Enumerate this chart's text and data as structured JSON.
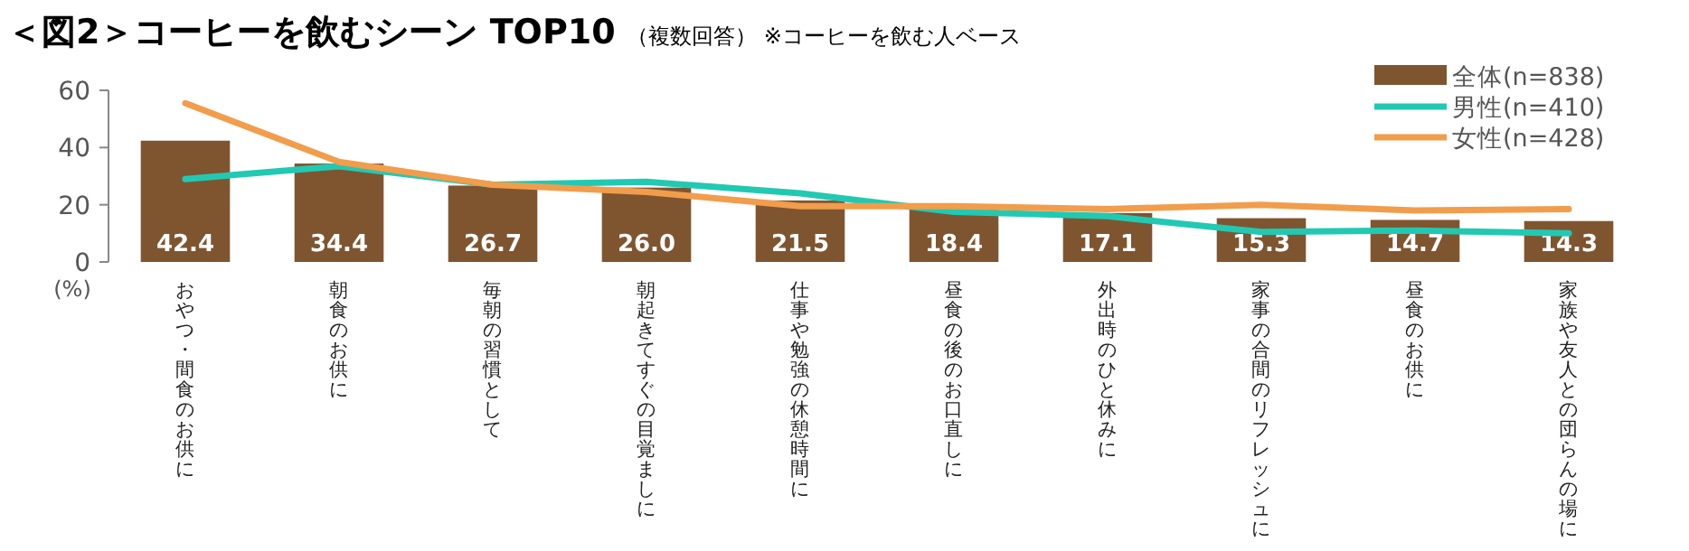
{
  "chart_data": {
    "type": "bar",
    "title": "＜図2＞コーヒーを飲むシーン TOP10",
    "subtitle": "（複数回答）",
    "annotations": [
      "※コーヒーを飲む人ベース"
    ],
    "ylabel": "(%)",
    "categories": [
      "おやつ・間食のお供に",
      "朝食のお供に",
      "毎朝の習慣として",
      "朝起きてすぐの目覚ましに",
      "仕事や勉強の休憩時間に",
      "昼食の後のお口直しに",
      "外出時のひと休みに",
      "家事の合間のリフレッシュに",
      "昼食のお供に",
      "家族や友人との団らんの場に"
    ],
    "series": [
      {
        "name": "全体(n=838)",
        "color": "#7f5530",
        "values": [
          42.4,
          34.4,
          26.7,
          26.0,
          21.5,
          18.4,
          17.1,
          15.3,
          14.7,
          14.3
        ],
        "value_labels": [
          "42.4",
          "34.4",
          "26.7",
          "26.0",
          "21.5",
          "18.4",
          "17.1",
          "15.3",
          "14.7",
          "14.3"
        ]
      },
      {
        "name": "男性(n=410)",
        "type": "line",
        "color": "#22c9b2",
        "values": [
          29,
          33.5,
          27,
          28,
          24,
          17.5,
          16,
          10.5,
          11,
          10
        ]
      },
      {
        "name": "女性(n=428)",
        "type": "line",
        "color": "#f19d4c",
        "values": [
          55.5,
          35,
          27,
          24.5,
          19.5,
          19.5,
          18.5,
          20,
          18,
          18.5
        ]
      }
    ],
    "ylim": [
      0,
      60
    ],
    "yticks": [
      0,
      20,
      40,
      60
    ],
    "legend": "top right",
    "marker": "none",
    "grid": false
  }
}
